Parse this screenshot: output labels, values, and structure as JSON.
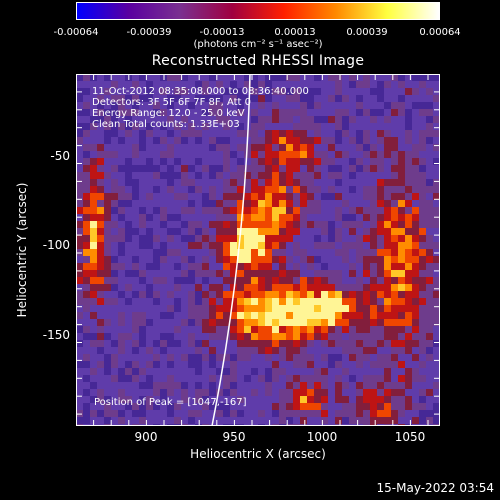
{
  "colorbar": {
    "ticks": [
      "-0.00064",
      "-0.00039",
      "-0.00013",
      "0.00013",
      "0.00039",
      "0.00064"
    ],
    "unit": "(photons cm⁻² s⁻¹ asec⁻²)",
    "colors": [
      "#0000ff",
      "#5a00a0",
      "#7a3090",
      "#a00040",
      "#ff2000",
      "#ff8800",
      "#ffff40",
      "#ffffff"
    ]
  },
  "title": "Reconstructed RHESSI Image",
  "info": {
    "line1": "11-Oct-2012 08:35:08.000 to 08:36:40.000",
    "line2": "Detectors: 3F 5F 6F 7F 8F, Att 0",
    "line3": "Energy Range: 12.0 - 25.0 keV",
    "line4": "Clean     Total counts: 1.33E+03"
  },
  "peak_text": "Position of Peak = [1047,-167]",
  "axes": {
    "xlabel": "Heliocentric X (arcsec)",
    "ylabel": "Heliocentric Y (arcsec)",
    "xticks": [
      "900",
      "950",
      "1000",
      "1050"
    ],
    "yticks": [
      "-50",
      "-100",
      "-150"
    ]
  },
  "timestamp": "15-May-2022 03:54"
}
